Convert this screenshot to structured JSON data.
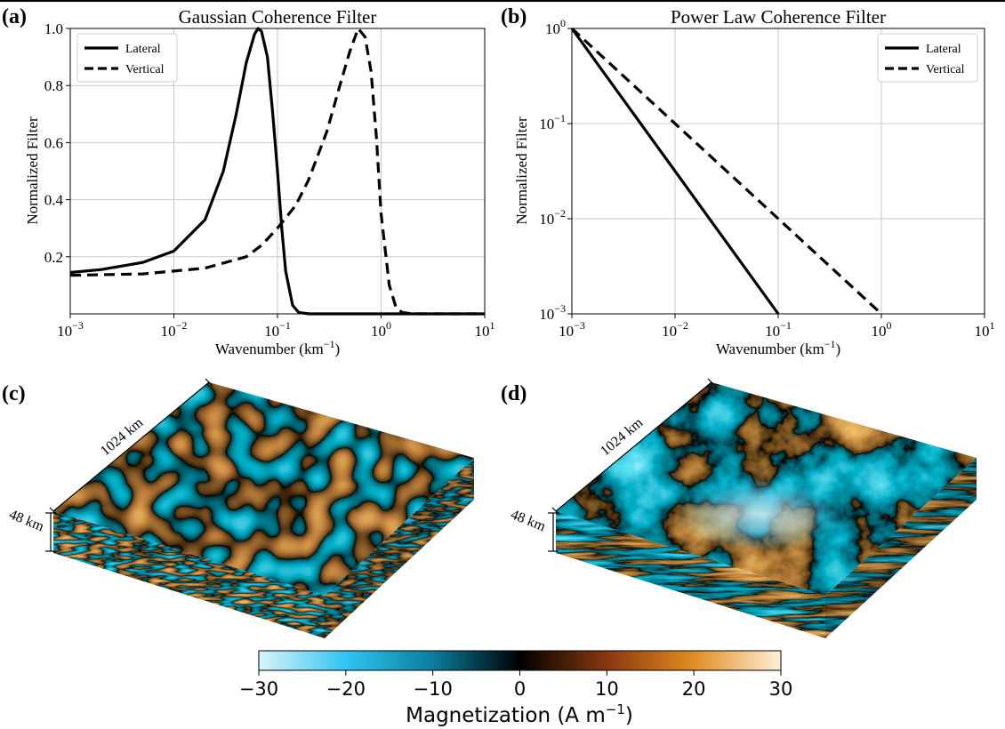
{
  "panels": {
    "a": {
      "label": "(a)",
      "chart_data": {
        "type": "line",
        "title": "Gaussian Coherence Filter",
        "xlabel": "Wavenumber (km",
        "xlabel_sup": "−1",
        "xlabel_tail": ")",
        "ylabel": "Normalized Filter",
        "xscale": "log",
        "xlim": [
          0.001,
          10
        ],
        "ylim": [
          0.0,
          1.0
        ],
        "xticks": [
          {
            "base": "10",
            "exp": "−3"
          },
          {
            "base": "10",
            "exp": "−2"
          },
          {
            "base": "10",
            "exp": "−1"
          },
          {
            "base": "10",
            "exp": "0"
          },
          {
            "base": "10",
            "exp": "1"
          }
        ],
        "yticks": [
          "0.2",
          "0.4",
          "0.6",
          "0.8",
          "1.0"
        ],
        "grid": true,
        "legend": "top-left",
        "series": [
          {
            "name": "Lateral",
            "style": "solid",
            "x": [
              0.001,
              0.002,
              0.005,
              0.01,
              0.02,
              0.03,
              0.04,
              0.05,
              0.06,
              0.065,
              0.07,
              0.08,
              0.09,
              0.1,
              0.11,
              0.12,
              0.14,
              0.16,
              0.2,
              0.5,
              1,
              10
            ],
            "y": [
              0.145,
              0.155,
              0.18,
              0.22,
              0.33,
              0.5,
              0.7,
              0.88,
              0.98,
              1.0,
              0.99,
              0.9,
              0.7,
              0.5,
              0.3,
              0.15,
              0.03,
              0.005,
              0.0,
              0.0,
              0.0,
              0.0
            ]
          },
          {
            "name": "Vertical",
            "style": "dashed",
            "x": [
              0.001,
              0.005,
              0.01,
              0.02,
              0.05,
              0.07,
              0.1,
              0.15,
              0.2,
              0.3,
              0.4,
              0.5,
              0.6,
              0.7,
              0.8,
              0.9,
              1.0,
              1.2,
              1.4,
              1.6,
              2.0,
              10
            ],
            "y": [
              0.135,
              0.14,
              0.15,
              0.16,
              0.2,
              0.24,
              0.3,
              0.38,
              0.47,
              0.64,
              0.8,
              0.92,
              1.0,
              0.97,
              0.85,
              0.62,
              0.35,
              0.1,
              0.02,
              0.005,
              0.0,
              0.0
            ]
          }
        ]
      }
    },
    "b": {
      "label": "(b)",
      "chart_data": {
        "type": "line",
        "title": "Power Law Coherence Filter",
        "xlabel": "Wavenumber (km",
        "xlabel_sup": "−1",
        "xlabel_tail": ")",
        "ylabel": "Normalized Filter",
        "xscale": "log",
        "yscale": "log",
        "xlim": [
          0.001,
          10
        ],
        "ylim": [
          0.001,
          1
        ],
        "xticks": [
          {
            "base": "10",
            "exp": "−3"
          },
          {
            "base": "10",
            "exp": "−2"
          },
          {
            "base": "10",
            "exp": "−1"
          },
          {
            "base": "10",
            "exp": "0"
          },
          {
            "base": "10",
            "exp": "1"
          }
        ],
        "yticks": [
          {
            "base": "10",
            "exp": "−3"
          },
          {
            "base": "10",
            "exp": "−2"
          },
          {
            "base": "10",
            "exp": "−1"
          },
          {
            "base": "10",
            "exp": "0"
          }
        ],
        "grid": true,
        "legend": "top-right",
        "series": [
          {
            "name": "Lateral",
            "style": "solid",
            "x": [
              0.001,
              0.1
            ],
            "y": [
              1,
              0.001
            ]
          },
          {
            "name": "Vertical",
            "style": "dashed",
            "x": [
              0.001,
              1
            ],
            "y": [
              1,
              0.001
            ]
          }
        ]
      }
    },
    "c": {
      "label": "(c)",
      "length_label": "1024 km",
      "depth_label": "48 km"
    },
    "d": {
      "label": "(d)",
      "length_label": "1024 km",
      "depth_label": "48 km"
    }
  },
  "colorbar": {
    "label": "Magnetization (A m",
    "label_sup": "−1",
    "label_tail": ")",
    "ticks": [
      "−30",
      "−20",
      "−10",
      "0",
      "10",
      "20",
      "30"
    ],
    "range": [
      -30,
      30
    ],
    "colors": [
      "#d9f4fb",
      "#2ec4ef",
      "#0b7fa0",
      "#000000",
      "#8a3a10",
      "#e08a20",
      "#fff0d8"
    ]
  }
}
